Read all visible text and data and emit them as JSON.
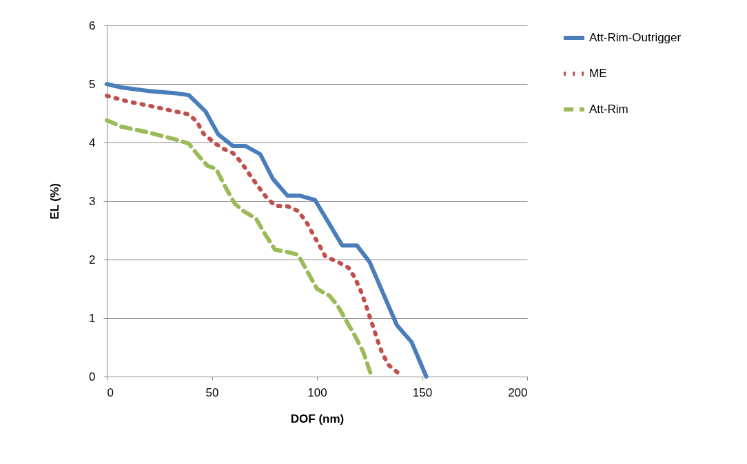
{
  "chart_data": {
    "type": "line",
    "xlabel": "DOF (nm)",
    "ylabel": "EL (%)",
    "xlim": [
      0,
      200
    ],
    "xticks": [
      0,
      50,
      100,
      150,
      200
    ],
    "ylim": [
      0,
      6
    ],
    "yticks": [
      0,
      1,
      2,
      3,
      4,
      5,
      6
    ],
    "grid": "y",
    "legend": "right",
    "marker": "none",
    "series": [
      {
        "name": "Att-Rim-Outrigger",
        "color": "#4a7ebb",
        "line_style": "solid",
        "x": [
          0,
          7,
          20,
          33,
          39,
          47,
          53,
          60,
          66,
          73,
          79,
          86,
          92,
          99,
          112,
          119,
          125,
          138,
          145,
          152
        ],
        "values": [
          5.0,
          4.94,
          4.88,
          4.84,
          4.81,
          4.53,
          4.14,
          3.94,
          3.94,
          3.8,
          3.38,
          3.09,
          3.09,
          3.02,
          2.24,
          2.24,
          1.96,
          0.88,
          0.59,
          0
        ]
      },
      {
        "name": "ME",
        "color": "#c0504d",
        "line_style": "dotted",
        "x": [
          0,
          10,
          20,
          30,
          39,
          43,
          46,
          51,
          55,
          60,
          64,
          68,
          72,
          76,
          80,
          86,
          91,
          95,
          98,
          101,
          104,
          110,
          115,
          118,
          121,
          123,
          125,
          127,
          129,
          131,
          134,
          140
        ],
        "values": [
          4.8,
          4.7,
          4.63,
          4.55,
          4.48,
          4.35,
          4.15,
          4.0,
          3.9,
          3.82,
          3.66,
          3.45,
          3.25,
          3.06,
          2.92,
          2.91,
          2.83,
          2.64,
          2.44,
          2.25,
          2.05,
          1.96,
          1.86,
          1.69,
          1.45,
          1.25,
          1.03,
          0.82,
          0.6,
          0.4,
          0.2,
          0.02
        ]
      },
      {
        "name": "Att-Rim",
        "color": "#9bbb59",
        "line_style": "dashed",
        "x": [
          0,
          7,
          20,
          33,
          39,
          43,
          48,
          52,
          57,
          61,
          65,
          71,
          75,
          80,
          87,
          91,
          100,
          106,
          110,
          118,
          122,
          126
        ],
        "values": [
          4.38,
          4.27,
          4.17,
          4.05,
          3.98,
          3.8,
          3.6,
          3.55,
          3.2,
          2.95,
          2.83,
          2.7,
          2.45,
          2.17,
          2.12,
          2.08,
          1.5,
          1.38,
          1.2,
          0.7,
          0.42,
          0
        ]
      }
    ]
  }
}
